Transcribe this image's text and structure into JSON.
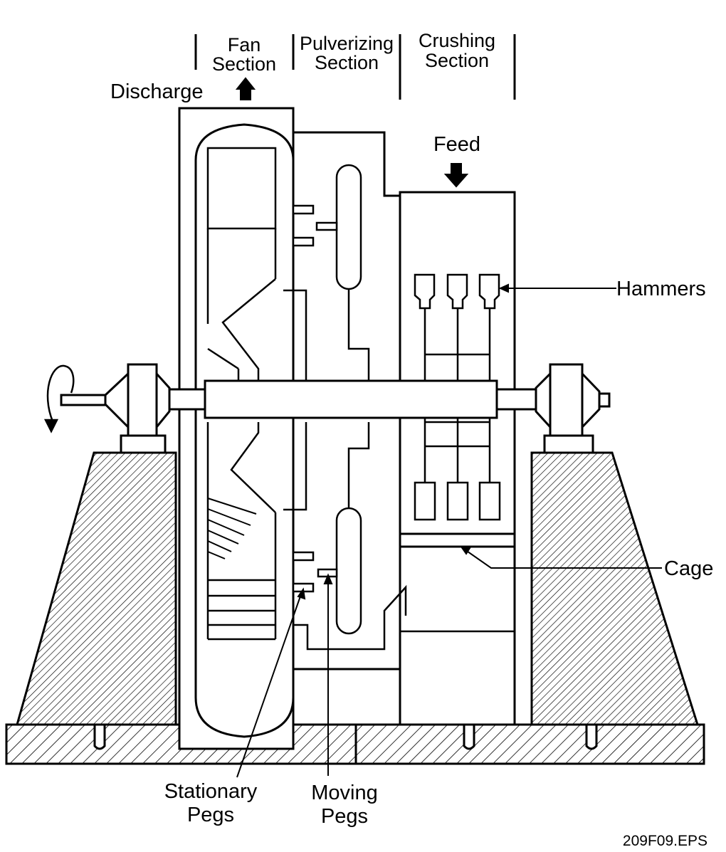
{
  "sections": {
    "fan": [
      "Fan",
      "Section"
    ],
    "pulverizing": [
      "Pulverizing",
      "Section"
    ],
    "crushing": [
      "Crushing",
      "Section"
    ]
  },
  "labels": {
    "discharge": "Discharge",
    "feed": "Feed",
    "hammers": "Hammers",
    "cage": "Cage",
    "stationary_pegs": [
      "Stationary",
      "Pegs"
    ],
    "moving_pegs": [
      "Moving",
      "Pegs"
    ]
  },
  "file_id": "209F09.EPS",
  "colors": {
    "line": "#000000",
    "background": "#ffffff"
  }
}
